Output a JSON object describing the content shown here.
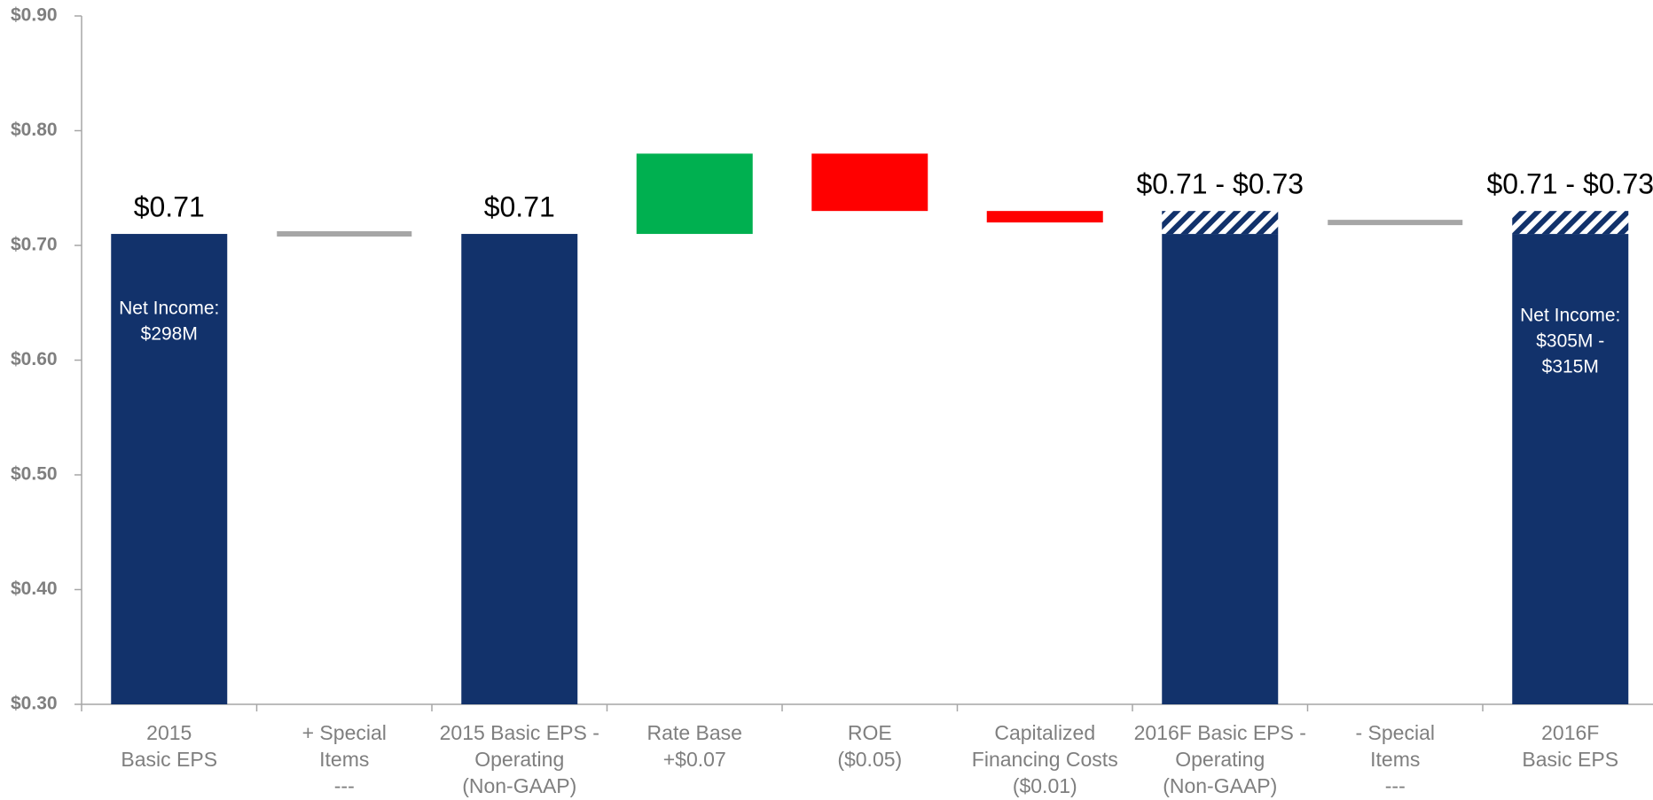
{
  "chart_data": {
    "type": "waterfall",
    "categories": [
      [
        "2015",
        "Basic EPS"
      ],
      [
        "+ Special",
        "Items",
        "---"
      ],
      [
        "2015 Basic EPS -",
        "Operating",
        "(Non-GAAP)"
      ],
      [
        "Rate Base",
        "+$0.07"
      ],
      [
        "ROE",
        "($0.05)"
      ],
      [
        "Capitalized",
        "Financing Costs",
        "($0.01)"
      ],
      [
        "2016F Basic EPS -",
        "Operating",
        "(Non-GAAP)"
      ],
      [
        "- Special",
        "Items",
        "---"
      ],
      [
        "2016F",
        "Basic EPS"
      ]
    ],
    "measures": [
      "total",
      "relative",
      "total",
      "relative",
      "relative",
      "relative",
      "range",
      "relative",
      "range"
    ],
    "values": [
      0.71,
      0,
      0.71,
      0.07,
      -0.05,
      -0.01,
      [
        0.71,
        0.73
      ],
      0,
      [
        0.71,
        0.73
      ]
    ],
    "value_labels": [
      "$0.71",
      null,
      "$0.71",
      null,
      null,
      null,
      "$0.71 - $0.73",
      null,
      "$0.71 - $0.73"
    ],
    "colors": {
      "total": "#12326b",
      "increase": "#00b050",
      "decrease": "#ff0000",
      "unchanged": "#a6a6a6"
    },
    "annotations": [
      [
        "Net Income:",
        "$298M"
      ],
      [
        "Net Income:",
        "$305M -",
        "$315M"
      ]
    ],
    "ylim": [
      0.3,
      0.9
    ],
    "yticks": [
      {
        "value": 0.3,
        "label": "$0.30"
      },
      {
        "value": 0.4,
        "label": "$0.40"
      },
      {
        "value": 0.5,
        "label": "$0.50"
      },
      {
        "value": 0.6,
        "label": "$0.60"
      },
      {
        "value": 0.7,
        "label": "$0.70"
      },
      {
        "value": 0.8,
        "label": "$0.80"
      },
      {
        "value": 0.9,
        "label": "$0.90"
      }
    ]
  }
}
